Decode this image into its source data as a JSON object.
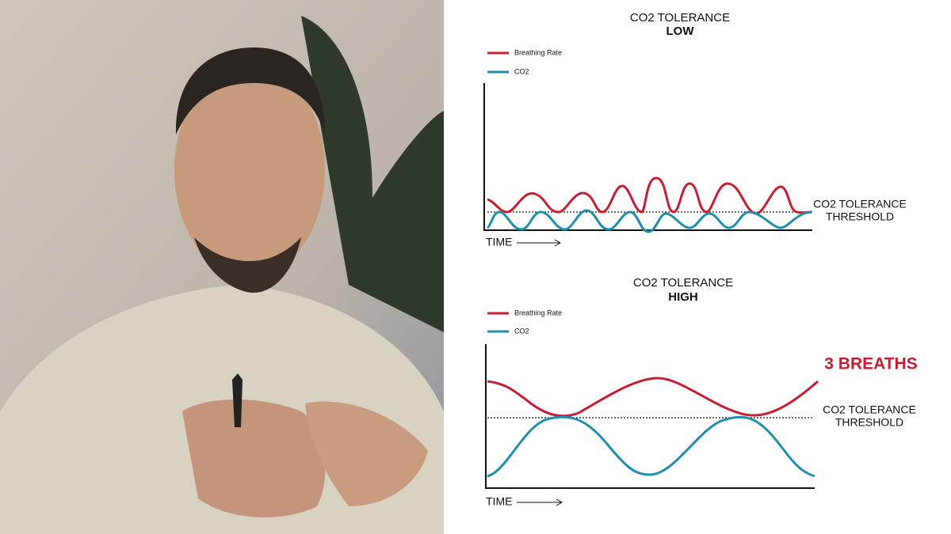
{
  "panels": [
    {
      "title": "CO2 TOLERANCE",
      "subtitle": "LOW",
      "legend": [
        "Breathing Rate",
        "CO2"
      ],
      "threshold_label": [
        "CO2 TOLERANCE",
        "THRESHOLD"
      ],
      "x_label": "TIME"
    },
    {
      "title": "CO2 TOLERANCE",
      "subtitle": "HIGH",
      "legend": [
        "Breathing Rate",
        "CO2"
      ],
      "threshold_label": [
        "CO2 TOLERANCE",
        "THRESHOLD"
      ],
      "x_label": "TIME",
      "annotation": "3 BREATHS"
    }
  ]
}
